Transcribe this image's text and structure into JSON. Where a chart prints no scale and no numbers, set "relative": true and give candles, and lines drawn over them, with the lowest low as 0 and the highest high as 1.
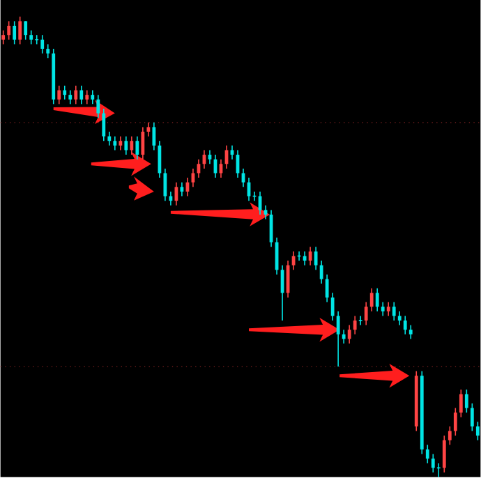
{
  "chart_data": {
    "type": "candlestick",
    "relative": true,
    "categories": [
      null,
      null,
      null,
      null,
      null,
      null,
      null,
      null,
      null,
      null,
      null,
      null,
      null,
      null,
      null,
      null,
      null,
      null,
      null,
      null,
      null,
      null,
      null,
      null,
      null,
      null,
      null,
      null,
      null,
      null,
      null,
      null,
      null,
      null,
      null,
      null,
      null,
      null,
      null,
      null,
      null,
      null,
      null,
      null,
      null,
      null,
      null,
      null,
      null,
      null,
      null,
      null,
      null,
      null,
      null,
      null,
      null,
      null,
      null,
      null,
      null,
      null,
      null,
      null,
      null,
      null,
      null,
      null,
      null,
      null,
      null,
      null,
      null,
      null,
      null,
      null,
      null,
      null,
      null,
      null,
      null,
      null,
      null,
      null,
      null,
      null
    ],
    "ohlc": [
      [
        0.95,
        0.97,
        0.94,
        0.96
      ],
      [
        0.96,
        0.99,
        0.95,
        0.98
      ],
      [
        0.98,
        0.99,
        0.94,
        0.95
      ],
      [
        0.95,
        1,
        0.94,
        0.99
      ],
      [
        0.99,
        0.99,
        0.95,
        0.96
      ],
      [
        0.96,
        0.97,
        0.94,
        0.95
      ],
      [
        0.95,
        0.96,
        0.94,
        0.95
      ],
      [
        0.95,
        0.96,
        0.92,
        0.93
      ],
      [
        0.93,
        0.94,
        0.91,
        0.92
      ],
      [
        0.92,
        0.93,
        0.81,
        0.82
      ],
      [
        0.82,
        0.85,
        0.81,
        0.84
      ],
      [
        0.84,
        0.85,
        0.82,
        0.83
      ],
      [
        0.83,
        0.84,
        0.81,
        0.82
      ],
      [
        0.82,
        0.85,
        0.81,
        0.84
      ],
      [
        0.84,
        0.85,
        0.81,
        0.82
      ],
      [
        0.82,
        0.84,
        0.81,
        0.83
      ],
      [
        0.83,
        0.84,
        0.81,
        0.82
      ],
      [
        0.82,
        0.83,
        0.78,
        0.79
      ],
      [
        0.79,
        0.8,
        0.73,
        0.74
      ],
      [
        0.74,
        0.75,
        0.72,
        0.73
      ],
      [
        0.73,
        0.74,
        0.71,
        0.72
      ],
      [
        0.72,
        0.74,
        0.71,
        0.73
      ],
      [
        0.73,
        0.74,
        0.7,
        0.71
      ],
      [
        0.71,
        0.74,
        0.7,
        0.73
      ],
      [
        0.73,
        0.74,
        0.69,
        0.7
      ],
      [
        0.7,
        0.76,
        0.69,
        0.75
      ],
      [
        0.75,
        0.77,
        0.74,
        0.76
      ],
      [
        0.76,
        0.77,
        0.71,
        0.72
      ],
      [
        0.72,
        0.73,
        0.65,
        0.66
      ],
      [
        0.66,
        0.67,
        0.6,
        0.61
      ],
      [
        0.61,
        0.62,
        0.59,
        0.6
      ],
      [
        0.6,
        0.64,
        0.59,
        0.63
      ],
      [
        0.63,
        0.64,
        0.61,
        0.62
      ],
      [
        0.62,
        0.65,
        0.61,
        0.64
      ],
      [
        0.64,
        0.67,
        0.63,
        0.66
      ],
      [
        0.66,
        0.69,
        0.65,
        0.68
      ],
      [
        0.68,
        0.71,
        0.67,
        0.7
      ],
      [
        0.7,
        0.71,
        0.68,
        0.69
      ],
      [
        0.69,
        0.7,
        0.65,
        0.66
      ],
      [
        0.66,
        0.69,
        0.65,
        0.68
      ],
      [
        0.68,
        0.72,
        0.67,
        0.71
      ],
      [
        0.71,
        0.72,
        0.69,
        0.7
      ],
      [
        0.7,
        0.71,
        0.65,
        0.66
      ],
      [
        0.66,
        0.67,
        0.63,
        0.64
      ],
      [
        0.64,
        0.65,
        0.6,
        0.61
      ],
      [
        0.61,
        0.62,
        0.6,
        0.61
      ],
      [
        0.61,
        0.62,
        0.57,
        0.58
      ],
      [
        0.58,
        0.59,
        0.56,
        0.57
      ],
      [
        0.57,
        0.58,
        0.5,
        0.51
      ],
      [
        0.51,
        0.52,
        0.44,
        0.45
      ],
      [
        0.45,
        0.46,
        0.34,
        0.4
      ],
      [
        0.4,
        0.47,
        0.39,
        0.46
      ],
      [
        0.46,
        0.49,
        0.45,
        0.48
      ],
      [
        0.48,
        0.49,
        0.47,
        0.48
      ],
      [
        0.48,
        0.49,
        0.46,
        0.47
      ],
      [
        0.47,
        0.5,
        0.46,
        0.49
      ],
      [
        0.49,
        0.5,
        0.45,
        0.46
      ],
      [
        0.46,
        0.47,
        0.42,
        0.43
      ],
      [
        0.43,
        0.44,
        0.38,
        0.39
      ],
      [
        0.39,
        0.4,
        0.34,
        0.35
      ],
      [
        0.35,
        0.36,
        0.24,
        0.31
      ],
      [
        0.31,
        0.32,
        0.29,
        0.3
      ],
      [
        0.3,
        0.33,
        0.29,
        0.32
      ],
      [
        0.32,
        0.35,
        0.31,
        0.34
      ],
      [
        0.34,
        0.35,
        0.33,
        0.34
      ],
      [
        0.34,
        0.38,
        0.33,
        0.37
      ],
      [
        0.37,
        0.41,
        0.36,
        0.4
      ],
      [
        0.4,
        0.41,
        0.36,
        0.37
      ],
      [
        0.37,
        0.38,
        0.35,
        0.36
      ],
      [
        0.36,
        0.38,
        0.35,
        0.37
      ],
      [
        0.37,
        0.38,
        0.34,
        0.35
      ],
      [
        0.35,
        0.36,
        0.33,
        0.34
      ],
      [
        0.34,
        0.35,
        0.31,
        0.32
      ],
      [
        0.32,
        0.33,
        0.3,
        0.31
      ],
      [
        0.11,
        0.23,
        0.1,
        0.22
      ],
      [
        0.22,
        0.23,
        0.05,
        0.06
      ],
      [
        0.06,
        0.07,
        0.03,
        0.04
      ],
      [
        0.04,
        0.05,
        0.01,
        0.02
      ],
      [
        0.02,
        0.03,
        0,
        0.02
      ],
      [
        0.02,
        0.09,
        0.01,
        0.08
      ],
      [
        0.08,
        0.11,
        0.07,
        0.1
      ],
      [
        0.1,
        0.15,
        0.09,
        0.14
      ],
      [
        0.14,
        0.19,
        0.13,
        0.18
      ],
      [
        0.18,
        0.19,
        0.14,
        0.15
      ],
      [
        0.15,
        0.16,
        0.1,
        0.11
      ],
      [
        0.11,
        0.12,
        0.08,
        0.09
      ]
    ],
    "colors": [
      "#ff4444",
      "#ff4444",
      "#00e5e5",
      "#ff4444",
      "#00e5e5",
      "#00e5e5",
      "#00e5e5",
      "#00e5e5",
      "#00e5e5",
      "#00e5e5",
      "#ff4444",
      "#00e5e5",
      "#00e5e5",
      "#ff4444",
      "#00e5e5",
      "#ff4444",
      "#00e5e5",
      "#00e5e5",
      "#00e5e5",
      "#00e5e5",
      "#00e5e5",
      "#ff4444",
      "#00e5e5",
      "#ff4444",
      "#00e5e5",
      "#ff4444",
      "#ff4444",
      "#00e5e5",
      "#00e5e5",
      "#00e5e5",
      "#00e5e5",
      "#ff4444",
      "#00e5e5",
      "#ff4444",
      "#ff4444",
      "#ff4444",
      "#ff4444",
      "#00e5e5",
      "#00e5e5",
      "#ff4444",
      "#ff4444",
      "#00e5e5",
      "#00e5e5",
      "#00e5e5",
      "#00e5e5",
      "#00e5e5",
      "#00e5e5",
      "#00e5e5",
      "#00e5e5",
      "#00e5e5",
      "#00e5e5",
      "#ff4444",
      "#ff4444",
      "#00e5e5",
      "#00e5e5",
      "#ff4444",
      "#00e5e5",
      "#00e5e5",
      "#00e5e5",
      "#00e5e5",
      "#00e5e5",
      "#00e5e5",
      "#ff4444",
      "#ff4444",
      "#00e5e5",
      "#ff4444",
      "#ff4444",
      "#00e5e5",
      "#00e5e5",
      "#ff4444",
      "#00e5e5",
      "#00e5e5",
      "#00e5e5",
      "#00e5e5",
      "#ff4444",
      "#00e5e5",
      "#00e5e5",
      "#00e5e5",
      "#00e5e5",
      "#ff4444",
      "#ff4444",
      "#ff4444",
      "#ff4444",
      "#00e5e5",
      "#00e5e5",
      "#00e5e5"
    ],
    "ref_lines": [
      {
        "axis": "y",
        "value": 0.77,
        "color": "#7a2020",
        "line_style": "dotted"
      },
      {
        "axis": "y",
        "value": 0.24,
        "color": "#7a2020",
        "line_style": "dotted"
      }
    ]
  }
}
